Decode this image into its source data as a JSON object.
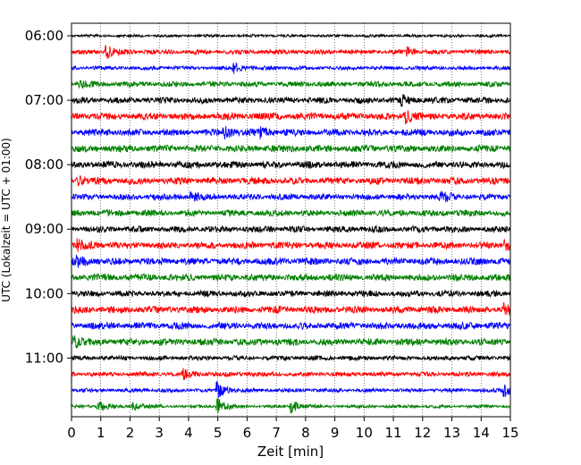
{
  "chart_data": {
    "type": "line",
    "subtype": "helicorder-seismogram",
    "title": "",
    "xlabel": "Zeit  [min]",
    "ylabel": "UTC (Lokalzeit = UTC + 01:00)",
    "xlim": [
      0,
      15
    ],
    "x_ticks": [
      "0",
      "1",
      "2",
      "3",
      "4",
      "5",
      "6",
      "7",
      "8",
      "9",
      "10",
      "11",
      "12",
      "13",
      "14",
      "15"
    ],
    "y_ticks": [
      "06:00",
      "07:00",
      "08:00",
      "09:00",
      "10:00",
      "11:00"
    ],
    "grid": "vertical dotted lines at each minute",
    "legend": "none",
    "trace_interval_minutes": 15,
    "trace_colors": [
      "#000000",
      "#ff0000",
      "#0000ff",
      "#008000"
    ],
    "traces": [
      {
        "start": "06:00",
        "color": "#000000",
        "amplitude": 0.18,
        "events": []
      },
      {
        "start": "06:15",
        "color": "#ff0000",
        "amplitude": 0.3,
        "events": [
          [
            1.2,
            0.7
          ],
          [
            11.5,
            0.45
          ]
        ]
      },
      {
        "start": "06:30",
        "color": "#0000ff",
        "amplitude": 0.25,
        "events": [
          [
            5.5,
            0.7
          ]
        ]
      },
      {
        "start": "06:45",
        "color": "#008000",
        "amplitude": 0.35,
        "events": [
          [
            0.3,
            0.4
          ]
        ]
      },
      {
        "start": "07:00",
        "color": "#000000",
        "amplitude": 0.4,
        "events": [
          [
            11.3,
            0.5
          ]
        ]
      },
      {
        "start": "07:15",
        "color": "#ff0000",
        "amplitude": 0.45,
        "events": [
          [
            11.4,
            0.8
          ]
        ]
      },
      {
        "start": "07:30",
        "color": "#0000ff",
        "amplitude": 0.45,
        "events": [
          [
            5.2,
            0.7
          ],
          [
            6.5,
            0.5
          ]
        ]
      },
      {
        "start": "07:45",
        "color": "#008000",
        "amplitude": 0.45,
        "events": []
      },
      {
        "start": "08:00",
        "color": "#000000",
        "amplitude": 0.45,
        "events": []
      },
      {
        "start": "08:15",
        "color": "#ff0000",
        "amplitude": 0.45,
        "events": [
          [
            0.2,
            0.5
          ]
        ]
      },
      {
        "start": "08:30",
        "color": "#0000ff",
        "amplitude": 0.4,
        "events": [
          [
            12.6,
            0.6
          ],
          [
            4.1,
            0.4
          ]
        ]
      },
      {
        "start": "08:45",
        "color": "#008000",
        "amplitude": 0.4,
        "events": []
      },
      {
        "start": "09:00",
        "color": "#000000",
        "amplitude": 0.4,
        "events": []
      },
      {
        "start": "09:15",
        "color": "#ff0000",
        "amplitude": 0.45,
        "events": [
          [
            14.8,
            0.6
          ],
          [
            0.2,
            0.5
          ]
        ]
      },
      {
        "start": "09:30",
        "color": "#0000ff",
        "amplitude": 0.45,
        "events": [
          [
            0.2,
            0.6
          ]
        ]
      },
      {
        "start": "09:45",
        "color": "#008000",
        "amplitude": 0.45,
        "events": []
      },
      {
        "start": "10:00",
        "color": "#000000",
        "amplitude": 0.4,
        "events": []
      },
      {
        "start": "10:15",
        "color": "#ff0000",
        "amplitude": 0.45,
        "events": [
          [
            14.8,
            0.6
          ]
        ]
      },
      {
        "start": "10:30",
        "color": "#0000ff",
        "amplitude": 0.45,
        "events": []
      },
      {
        "start": "10:45",
        "color": "#008000",
        "amplitude": 0.45,
        "events": [
          [
            0.1,
            0.6
          ]
        ]
      },
      {
        "start": "11:00",
        "color": "#000000",
        "amplitude": 0.3,
        "events": []
      },
      {
        "start": "11:15",
        "color": "#ff0000",
        "amplitude": 0.3,
        "events": [
          [
            3.8,
            0.5
          ]
        ]
      },
      {
        "start": "11:30",
        "color": "#0000ff",
        "amplitude": 0.25,
        "events": [
          [
            5.0,
            0.9
          ],
          [
            14.8,
            0.8
          ]
        ]
      },
      {
        "start": "11:45",
        "color": "#008000",
        "amplitude": 0.2,
        "events": [
          [
            0.9,
            0.8
          ],
          [
            2.1,
            0.5
          ],
          [
            5.0,
            1.0
          ],
          [
            7.5,
            0.8
          ]
        ]
      }
    ]
  }
}
